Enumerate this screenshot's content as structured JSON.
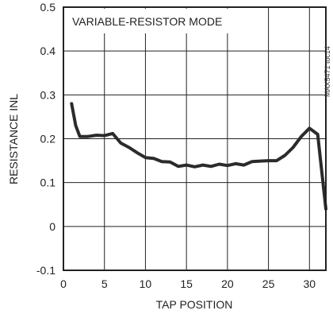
{
  "chart_data": {
    "type": "line",
    "title": "",
    "annotation": "VARIABLE-RESISTOR MODE",
    "side_label": "MAX5471 toc14",
    "xlabel": "TAP POSITION",
    "ylabel": "RESISTANCE INL",
    "xlim": [
      0,
      32
    ],
    "ylim": [
      -0.1,
      0.5
    ],
    "x_ticks": [
      0,
      5,
      10,
      15,
      20,
      25,
      30
    ],
    "y_ticks": [
      -0.1,
      0,
      0.1,
      0.2,
      0.3,
      0.4,
      0.5
    ],
    "x_tick_labels": [
      "0",
      "5",
      "10",
      "15",
      "20",
      "25",
      "30"
    ],
    "y_tick_labels": [
      "-0.1",
      "0",
      "0.1",
      "0.2",
      "0.3",
      "0.4",
      "0.5"
    ],
    "grid": true,
    "line_color": "#2b2b2b",
    "series": [
      {
        "x": [
          1,
          1.5,
          2,
          3,
          4,
          5,
          6,
          7,
          8,
          9,
          10,
          11,
          12,
          13,
          14,
          15,
          16,
          17,
          18,
          19,
          20,
          21,
          22,
          23,
          24,
          25,
          26,
          27,
          28,
          29,
          30,
          31,
          32
        ],
        "y": [
          0.28,
          0.23,
          0.205,
          0.205,
          0.208,
          0.207,
          0.212,
          0.19,
          0.18,
          0.168,
          0.157,
          0.155,
          0.148,
          0.147,
          0.137,
          0.14,
          0.136,
          0.14,
          0.137,
          0.142,
          0.139,
          0.143,
          0.14,
          0.148,
          0.149,
          0.15,
          0.15,
          0.162,
          0.18,
          0.205,
          0.224,
          0.21,
          0.04
        ]
      }
    ]
  }
}
